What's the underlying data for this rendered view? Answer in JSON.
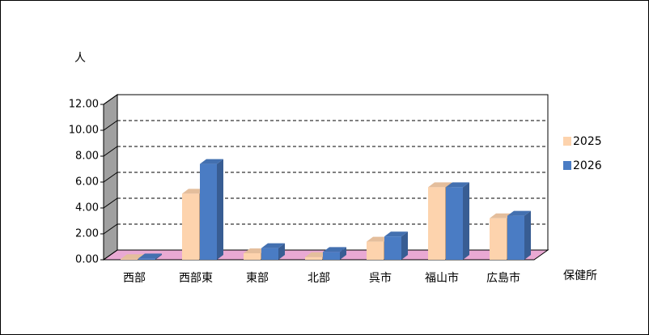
{
  "chart_data": {
    "type": "bar3d",
    "y_label": "人",
    "x_label": "保健所",
    "categories": [
      "西部",
      "西部東",
      "東部",
      "北部",
      "呉市",
      "福山市",
      "広島市"
    ],
    "series": [
      {
        "name": "2025",
        "color": "#fdd3ad",
        "values": [
          0.05,
          5.1,
          0.5,
          0.2,
          1.4,
          5.6,
          3.2
        ]
      },
      {
        "name": "2026",
        "color": "#4a7cc4",
        "values": [
          0.1,
          7.4,
          0.9,
          0.6,
          1.8,
          5.6,
          3.4
        ]
      }
    ],
    "ylim": [
      0,
      12
    ],
    "yticks": [
      {
        "value": 0,
        "label": "0.00"
      },
      {
        "value": 2,
        "label": "2.00"
      },
      {
        "value": 4,
        "label": "4.00"
      },
      {
        "value": 6,
        "label": "6.00"
      },
      {
        "value": 8,
        "label": "8.00"
      },
      {
        "value": 10,
        "label": "10.00"
      },
      {
        "value": 12,
        "label": "12.00"
      }
    ],
    "grid": true,
    "legend": "right"
  }
}
